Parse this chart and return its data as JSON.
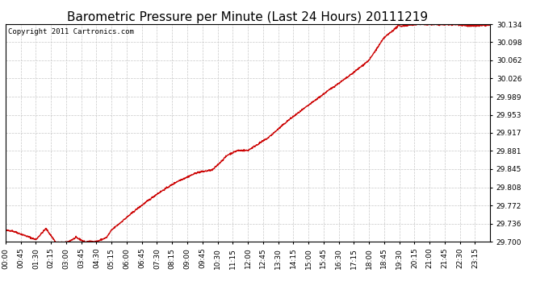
{
  "title": "Barometric Pressure per Minute (Last 24 Hours) 20111219",
  "copyright": "Copyright 2011 Cartronics.com",
  "background_color": "#ffffff",
  "plot_bg_color": "#ffffff",
  "line_color": "#cc0000",
  "grid_color": "#c8c8c8",
  "y_ticks": [
    29.7,
    29.736,
    29.772,
    29.808,
    29.845,
    29.881,
    29.917,
    29.953,
    29.989,
    30.026,
    30.062,
    30.098,
    30.134
  ],
  "ylim": [
    29.7,
    30.134
  ],
  "x_tick_labels": [
    "00:00",
    "00:45",
    "01:30",
    "02:15",
    "03:00",
    "03:45",
    "04:30",
    "05:15",
    "06:00",
    "06:45",
    "07:30",
    "08:15",
    "09:00",
    "09:45",
    "10:30",
    "11:15",
    "12:00",
    "12:45",
    "13:30",
    "14:15",
    "15:00",
    "15:45",
    "16:30",
    "17:15",
    "18:00",
    "18:45",
    "19:30",
    "20:15",
    "21:00",
    "21:45",
    "22:30",
    "23:15"
  ],
  "title_fontsize": 11,
  "tick_fontsize": 6.5,
  "copyright_fontsize": 6.5,
  "line_width": 1.0
}
